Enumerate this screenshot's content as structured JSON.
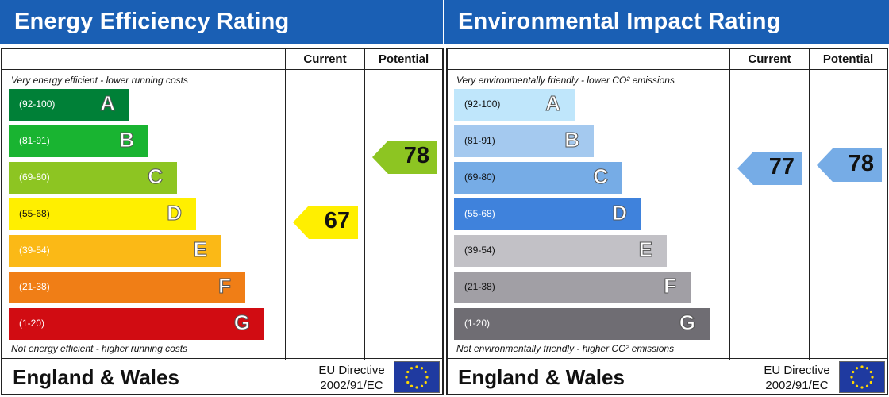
{
  "chart_data": [
    {
      "type": "bar",
      "title": "Energy Efficiency Rating",
      "columns": [
        "Current",
        "Potential"
      ],
      "top_caption": "Very energy efficient - lower running costs",
      "bottom_caption": "Not energy efficient - higher running costs",
      "bands": [
        {
          "range": "(92-100)",
          "letter": "A",
          "color": "#008037"
        },
        {
          "range": "(81-91)",
          "letter": "B",
          "color": "#19b431"
        },
        {
          "range": "(69-80)",
          "letter": "C",
          "color": "#8dc522"
        },
        {
          "range": "(55-68)",
          "letter": "D",
          "color": "#ffef00"
        },
        {
          "range": "(39-54)",
          "letter": "E",
          "color": "#fbb916"
        },
        {
          "range": "(21-38)",
          "letter": "F",
          "color": "#f07e16"
        },
        {
          "range": "(1-20)",
          "letter": "G",
          "color": "#d10c12"
        }
      ],
      "current": {
        "value": "67",
        "band": "D",
        "color": "#ffef00"
      },
      "potential": {
        "value": "78",
        "band": "C",
        "color": "#8dc522"
      },
      "region": "England & Wales",
      "directive_line1": "EU Directive",
      "directive_line2": "2002/91/EC"
    },
    {
      "type": "bar",
      "title": "Environmental Impact Rating",
      "columns": [
        "Current",
        "Potential"
      ],
      "top_caption": "Very environmentally friendly - lower CO² emissions",
      "bottom_caption": "Not environmentally friendly - higher CO² emissions",
      "bands": [
        {
          "range": "(92-100)",
          "letter": "A",
          "color": "#bfe6fb"
        },
        {
          "range": "(81-91)",
          "letter": "B",
          "color": "#a4c9ef"
        },
        {
          "range": "(69-80)",
          "letter": "C",
          "color": "#76ace6"
        },
        {
          "range": "(55-68)",
          "letter": "D",
          "color": "#3f82dc"
        },
        {
          "range": "(39-54)",
          "letter": "E",
          "color": "#c2c1c6"
        },
        {
          "range": "(21-38)",
          "letter": "F",
          "color": "#a19fa5"
        },
        {
          "range": "(1-20)",
          "letter": "G",
          "color": "#6f6d73"
        }
      ],
      "current": {
        "value": "77",
        "band": "C",
        "color": "#76ace6"
      },
      "potential": {
        "value": "78",
        "band": "C",
        "color": "#76ace6"
      },
      "region": "England & Wales",
      "directive_line1": "EU Directive",
      "directive_line2": "2002/91/EC"
    }
  ]
}
